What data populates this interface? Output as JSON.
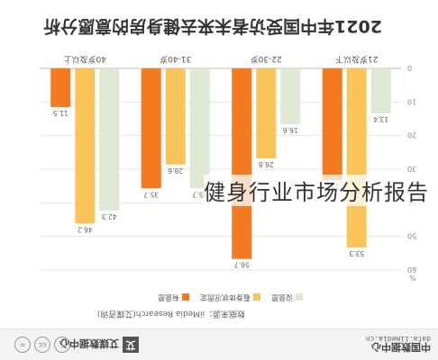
{
  "chart_data": {
    "type": "bar",
    "title": "2021年中国受访者未来去健身房的意愿分析",
    "categories": [
      "21岁及以下",
      "22-30岁",
      "31-40岁",
      "40岁及以上"
    ],
    "series": [
      {
        "name": "没意愿",
        "color": "#dfe8d2",
        "values": [
          13.4,
          16.6,
          35.7,
          42.3
        ]
      },
      {
        "name": "看身体状况而定",
        "color": "#f9c55a",
        "values": [
          53.3,
          26.8,
          28.6,
          46.2
        ]
      },
      {
        "name": "有意愿",
        "color": "#f47a22",
        "values": [
          33.3,
          56.7,
          35.7,
          11.5
        ]
      }
    ],
    "unit": "%",
    "ylim": [
      0,
      60
    ],
    "yticks": [
      0,
      10,
      20,
      30,
      40,
      50,
      60
    ],
    "grid": true,
    "legend": "bottom",
    "source": "数据来源：iiMedia Research(艾媒咨询)"
  },
  "footer": {
    "logo_text": "中国数据中心",
    "url": "data.iimedia.cn",
    "brand_mark": "艾",
    "brand_text": "艾媒数据中心",
    "cc_icons": [
      "cc",
      "i",
      "="
    ]
  },
  "overlay": {
    "watermark": "健身行业市场分析报告"
  }
}
